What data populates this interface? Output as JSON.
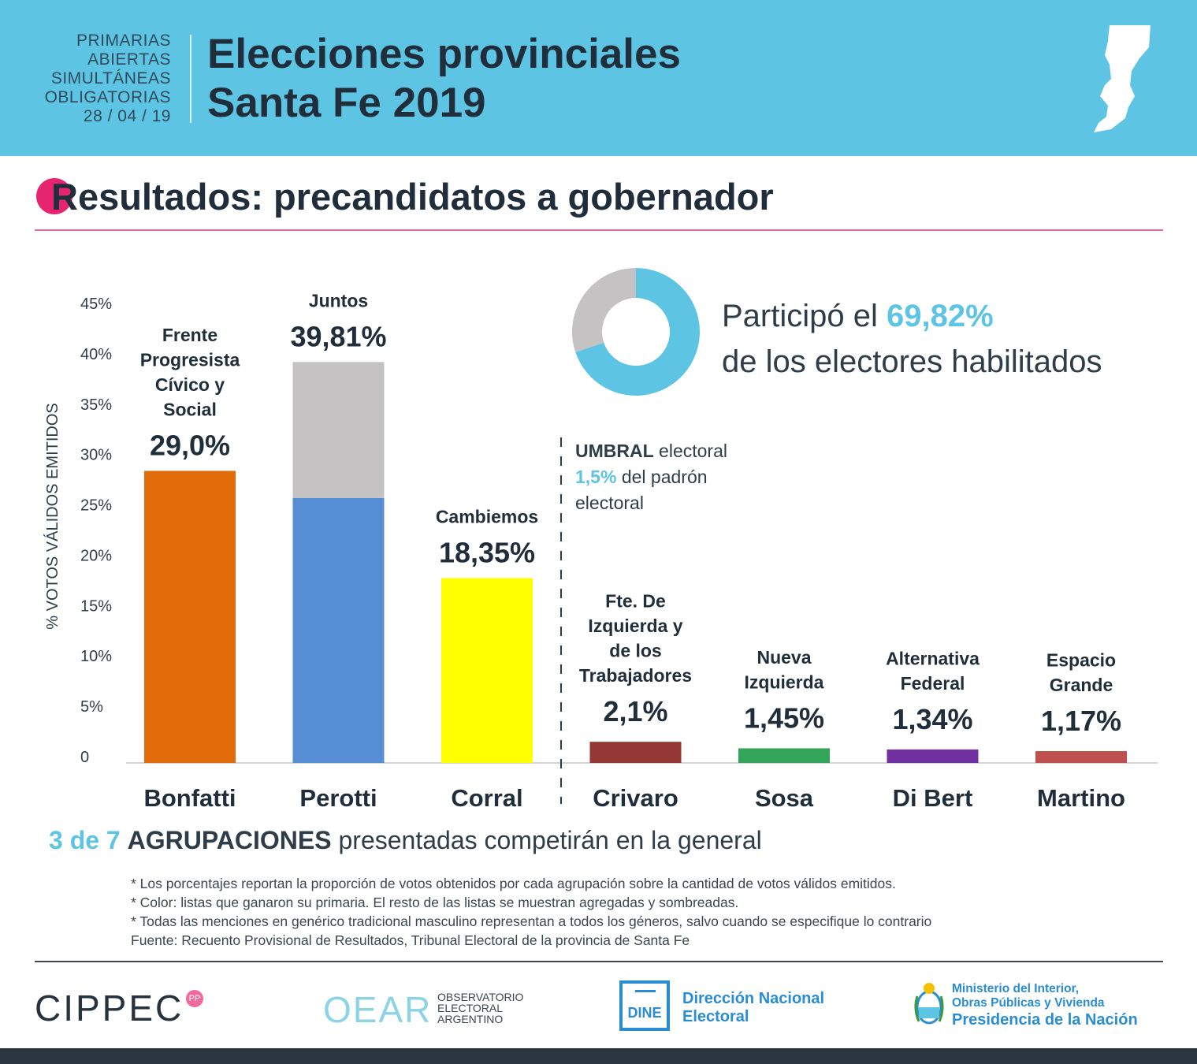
{
  "header": {
    "paso_lines": [
      "PRIMARIAS",
      "ABIERTAS",
      "SIMULTÁNEAS",
      "OBLIGATORIAS",
      "28 / 04 / 19"
    ],
    "title_line1": "Elecciones provinciales",
    "title_line2": "Santa Fe 2019",
    "background_color": "#5ec4e4"
  },
  "subtitle": {
    "text": "Resultados: precandidatos a gobernador",
    "accent_color": "#e6246f"
  },
  "turnout": {
    "prefix": "Participó el ",
    "value": "69,82%",
    "line2": "de los electores habilitados",
    "percent": 69.82,
    "color": "#5ec4e4",
    "rest_color": "#c4c2c3"
  },
  "umbral": {
    "bold": "UMBRAL",
    "rest1": " electoral",
    "value": "1,5%",
    "rest2": " del padrón",
    "line3": "electoral"
  },
  "chart_data": {
    "type": "bar",
    "ylabel": "% VOTOS VÁLIDOS EMITIDOS",
    "ylim": [
      0,
      45
    ],
    "yticks": [
      0,
      5,
      10,
      15,
      20,
      25,
      30,
      35,
      40,
      45
    ],
    "ytick_labels": [
      "0",
      "5%",
      "10%",
      "15%",
      "20%",
      "25%",
      "30%",
      "35%",
      "40%",
      "45%"
    ],
    "categories": [
      "Bonfatti",
      "Perotti",
      "Corral",
      "Crivaro",
      "Sosa",
      "Di Bert",
      "Martino"
    ],
    "parties": [
      [
        "Frente",
        "Progresista",
        "Cívico y",
        "Social"
      ],
      [
        "Juntos"
      ],
      [
        "Cambiemos"
      ],
      [
        "Fte. De",
        "Izquierda y",
        "de los",
        "Trabajadores"
      ],
      [
        "Nueva",
        "Izquierda"
      ],
      [
        "Alternativa",
        "Federal"
      ],
      [
        "Espacio",
        "Grande"
      ]
    ],
    "value_labels": [
      "29,0%",
      "39,81%",
      "18,35%",
      "2,1%",
      "1,45%",
      "1,34%",
      "1,17%"
    ],
    "series": [
      {
        "name": "Lista ganadora",
        "values": [
          29.0,
          26.3,
          18.35,
          2.1,
          1.45,
          1.34,
          1.17
        ]
      },
      {
        "name": "Resto de las listas",
        "values": [
          0,
          13.51,
          0,
          0,
          0,
          0,
          0
        ]
      }
    ],
    "colors": [
      "#e36c0a",
      "#558ed5",
      "#ffff00",
      "#953735",
      "#32a55b",
      "#7030a0",
      "#c0504d"
    ],
    "aggregate_color": "#c4c2c3",
    "threshold_after_index": 2
  },
  "bottom_note": {
    "count": "3 de 7",
    "bold": "AGRUPACIONES",
    "rest": " presentadas competirán en la general"
  },
  "footnotes": [
    "* Los porcentajes reportan la proporción de votos obtenidos por cada agrupación sobre la cantidad de votos válidos emitidos.",
    "* Color: listas que ganaron su primaria. El resto de las listas se muestran agregadas y sombreadas.",
    "* Todas las menciones en genérico tradicional masculino representan a todos los géneros, salvo cuando se especifique lo contrario",
    "Fuente: Recuento Provisional de Resultados, Tribunal Electoral de la provincia de Santa Fe"
  ],
  "logos": {
    "cippec": "CIPPEC",
    "cippec_badge": "PP",
    "oear": "OEAR",
    "oear_lines": [
      "OBSERVATORIO",
      "ELECTORAL",
      "ARGENTINO"
    ],
    "dine_box": "DINE",
    "dine_lines": [
      "Dirección Nacional",
      "Electoral"
    ],
    "mi_lines": [
      "Ministerio del Interior,",
      "Obras Públicas y Vivienda"
    ],
    "mi_big": "Presidencia de la Nación"
  }
}
